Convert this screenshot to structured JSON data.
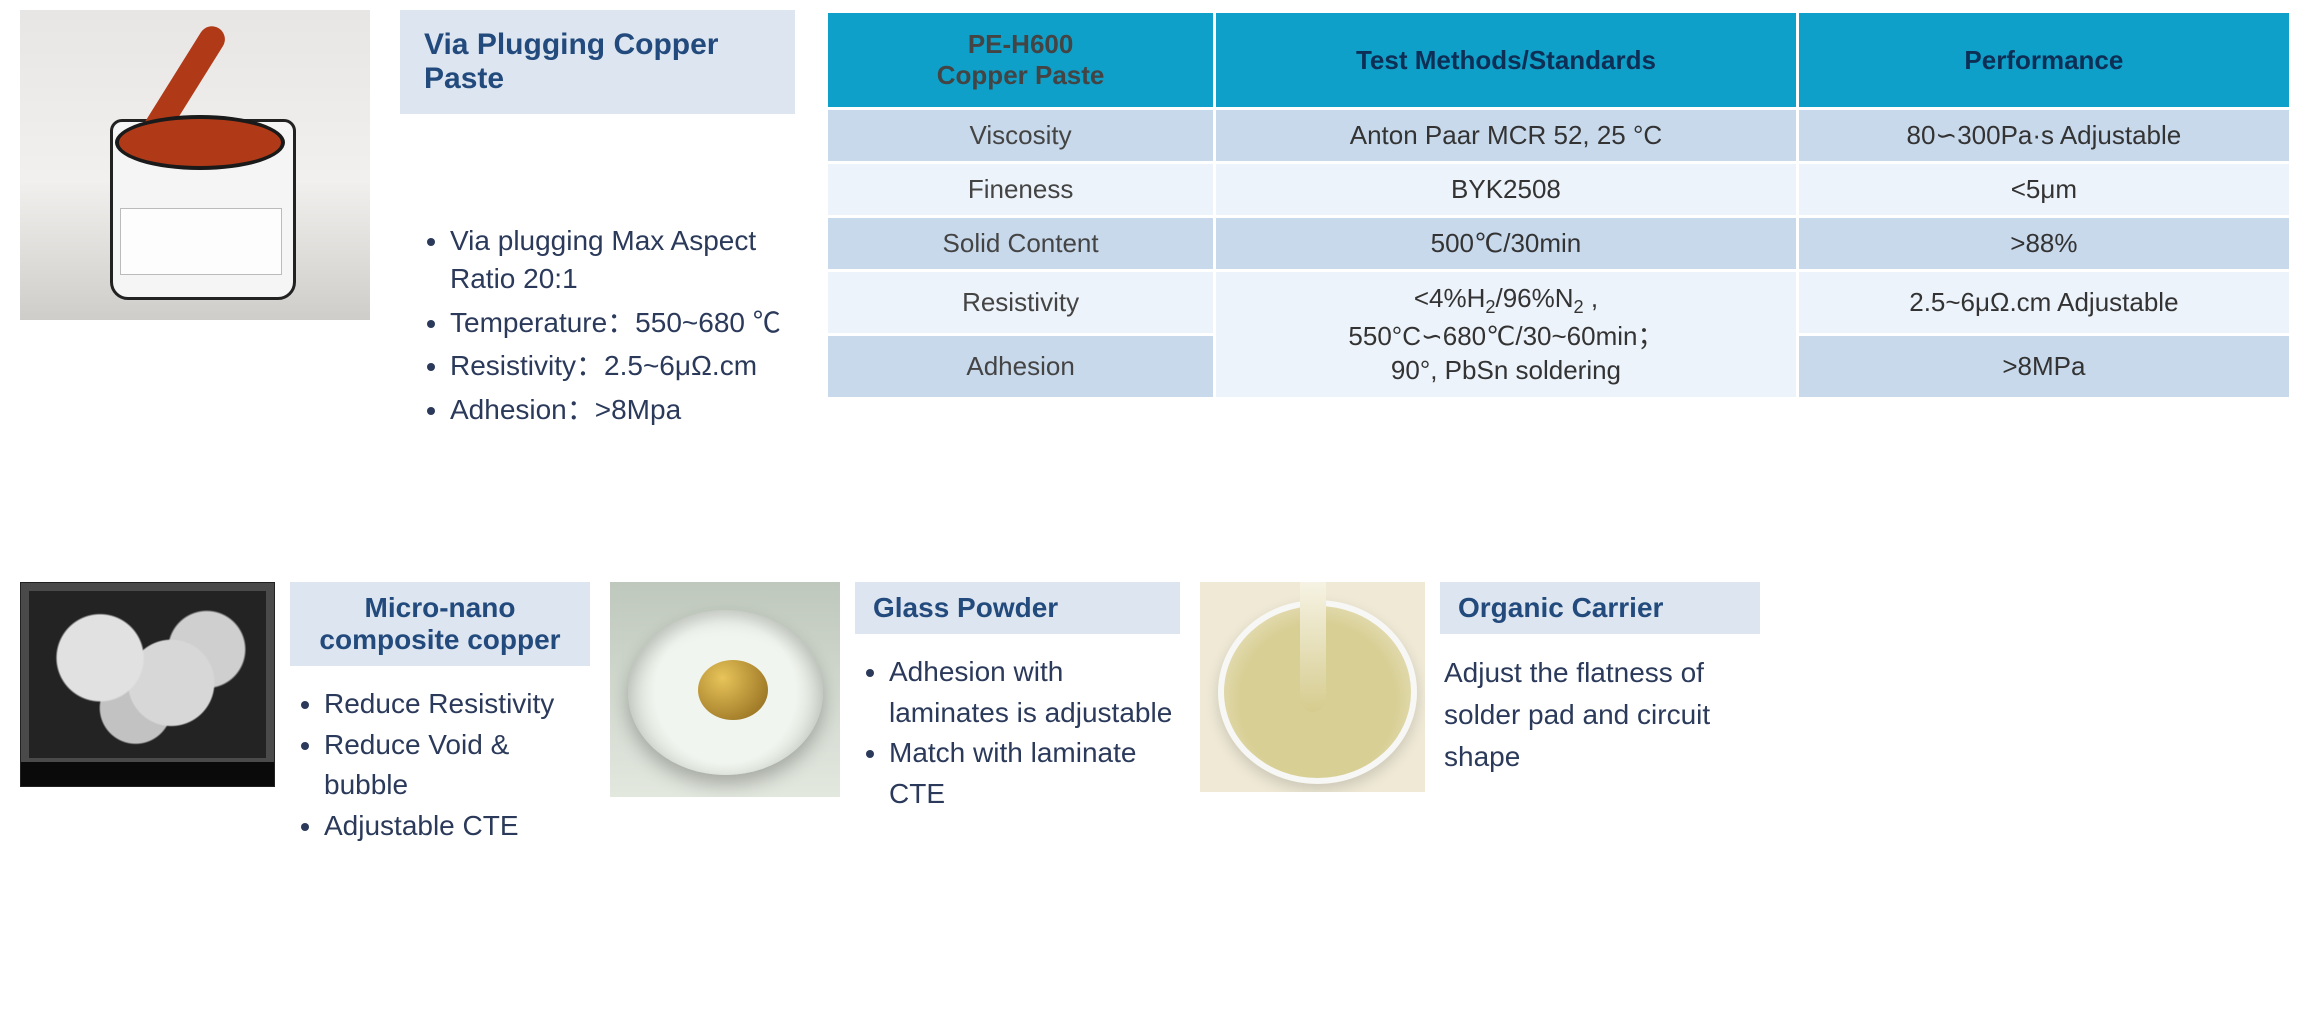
{
  "top": {
    "title": "Via Plugging Copper Paste",
    "bullets": [
      "Via plugging Max Aspect Ratio 20:1",
      "Temperature：550~680 ℃",
      "Resistivity：2.5~6μΩ.cm",
      "Adhesion：>8Mpa"
    ]
  },
  "table": {
    "headers": {
      "product_line1": "PE-H600",
      "product_line2": "Copper Paste",
      "methods": "Test Methods/Standards",
      "performance": "Performance"
    },
    "rows": [
      {
        "prop": "Viscosity",
        "method": "Anton Paar MCR 52, 25 °C",
        "perf": "80∽300Pa·s Adjustable"
      },
      {
        "prop": "Fineness",
        "method": "BYK2508",
        "perf": "<5μm"
      },
      {
        "prop": "Solid Content",
        "method": "500℃/30min",
        "perf": ">88%"
      },
      {
        "prop": "Resistivity",
        "method": "",
        "perf": "2.5~6μΩ.cm Adjustable"
      },
      {
        "prop": "Adhesion",
        "method": "",
        "perf": ">8MPa"
      }
    ],
    "merged_method_html": "<4%H<sub>2</sub>/96%N<sub>2</sub> ,<br>550°C∽680℃/30~60min；<br>90°, PbSn soldering"
  },
  "cards": {
    "copper": {
      "title": "Micro-nano composite copper",
      "bullets": [
        "Reduce Resistivity",
        "Reduce Void & bubble",
        "Adjustable CTE"
      ]
    },
    "glass": {
      "title": "Glass Powder",
      "bullets": [
        "Adhesion with laminates is adjustable",
        "Match with laminate CTE"
      ]
    },
    "carrier": {
      "title": "Organic Carrier",
      "text": "Adjust the flatness of solder pad and circuit shape"
    }
  }
}
